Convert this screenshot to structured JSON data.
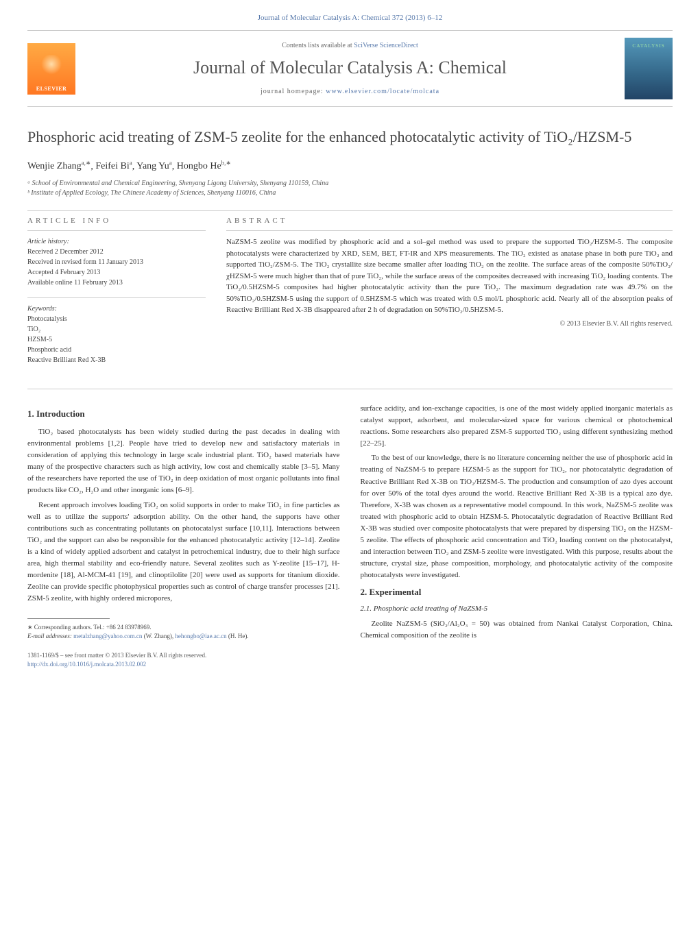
{
  "top_link": "Journal of Molecular Catalysis A: Chemical 372 (2013) 6–12",
  "masthead": {
    "publisher_name": "ELSEVIER",
    "contents_text": "Contents lists available at ",
    "contents_link": "SciVerse ScienceDirect",
    "journal_name": "Journal of Molecular Catalysis A: Chemical",
    "homepage_label": "journal homepage: ",
    "homepage_url": "www.elsevier.com/locate/molcata",
    "cover_label": "CATALYSIS"
  },
  "title": "Phosphoric acid treating of ZSM-5 zeolite for the enhanced photocatalytic activity of TiO₂/HZSM-5",
  "authors_html": "Wenjie Zhang",
  "authors": [
    {
      "name": "Wenjie Zhang",
      "sup": "a,∗"
    },
    {
      "name": "Feifei Bi",
      "sup": "a"
    },
    {
      "name": "Yang Yu",
      "sup": "a"
    },
    {
      "name": "Hongbo He",
      "sup": "b,∗"
    }
  ],
  "affiliations": [
    "ᵃ School of Environmental and Chemical Engineering, Shenyang Ligong University, Shenyang 110159, China",
    "ᵇ Institute of Applied Ecology, The Chinese Academy of Sciences, Shenyang 110016, China"
  ],
  "article_info": {
    "heading": "ARTICLE INFO",
    "history_label": "Article history:",
    "history": [
      "Received 2 December 2012",
      "Received in revised form 11 January 2013",
      "Accepted 4 February 2013",
      "Available online 11 February 2013"
    ],
    "keywords_label": "Keywords:",
    "keywords": [
      "Photocatalysis",
      "TiO₂",
      "HZSM-5",
      "Phosphoric acid",
      "Reactive Brilliant Red X-3B"
    ]
  },
  "abstract": {
    "heading": "ABSTRACT",
    "text": "NaZSM-5 zeolite was modified by phosphoric acid and a sol–gel method was used to prepare the supported TiO₂/HZSM-5. The composite photocatalysts were characterized by XRD, SEM, BET, FT-IR and XPS measurements. The TiO₂ existed as anatase phase in both pure TiO₂ and supported TiO₂/ZSM-5. The TiO₂ crystallite size became smaller after loading TiO₂ on the zeolite. The surface areas of the composite 50%TiO₂/χHZSM-5 were much higher than that of pure TiO₂, while the surface areas of the composites decreased with increasing TiO₂ loading contents. The TiO₂/0.5HZSM-5 composites had higher photocatalytic activity than the pure TiO₂. The maximum degradation rate was 49.7% on the 50%TiO₂/0.5HZSM-5 using the support of 0.5HZSM-5 which was treated with 0.5 mol/L phosphoric acid. Nearly all of the absorption peaks of Reactive Brilliant Red X-3B disappeared after 2 h of degradation on 50%TiO₂/0.5HZSM-5.",
    "copyright": "© 2013 Elsevier B.V. All rights reserved."
  },
  "sections": {
    "intro_heading": "1. Introduction",
    "intro_p1": "TiO₂ based photocatalysts has been widely studied during the past decades in dealing with environmental problems [1,2]. People have tried to develop new and satisfactory materials in consideration of applying this technology in large scale industrial plant. TiO₂ based materials have many of the prospective characters such as high activity, low cost and chemically stable [3–5]. Many of the researchers have reported the use of TiO₂ in deep oxidation of most organic pollutants into final products like CO₂, H₂O and other inorganic ions [6–9].",
    "intro_p2": "Recent approach involves loading TiO₂ on solid supports in order to make TiO₂ in fine particles as well as to utilize the supports' adsorption ability. On the other hand, the supports have other contributions such as concentrating pollutants on photocatalyst surface [10,11]. Interactions between TiO₂ and the support can also be responsible for the enhanced photocatalytic activity [12–14]. Zeolite is a kind of widely applied adsorbent and catalyst in petrochemical industry, due to their high surface area, high thermal stability and eco-friendly nature. Several zeolites such as Y-zeolite [15–17], H-mordenite [18], Al-MCM-41 [19], and clinoptilolite [20] were used as supports for titanium dioxide. Zeolite can provide specific photophysical properties such as control of charge transfer processes [21]. ZSM-5 zeolite, with highly ordered micropores,",
    "intro_p3": "surface acidity, and ion-exchange capacities, is one of the most widely applied inorganic materials as catalyst support, adsorbent, and molecular-sized space for various chemical or photochemical reactions. Some researchers also prepared ZSM-5 supported TiO₂ using different synthesizing method [22–25].",
    "intro_p4": "To the best of our knowledge, there is no literature concerning neither the use of phosphoric acid in treating of NaZSM-5 to prepare HZSM-5 as the support for TiO₂, nor photocatalytic degradation of Reactive Brilliant Red X-3B on TiO₂/HZSM-5. The production and consumption of azo dyes account for over 50% of the total dyes around the world. Reactive Brilliant Red X-3B is a typical azo dye. Therefore, X-3B was chosen as a representative model compound. In this work, NaZSM-5 zeolite was treated with phosphoric acid to obtain HZSM-5. Photocatalytic degradation of Reactive Brilliant Red X-3B was studied over composite photocatalysts that were prepared by dispersing TiO₂ on the HZSM-5 zeolite. The effects of phosphoric acid concentration and TiO₂ loading content on the photocatalyst, and interaction between TiO₂ and ZSM-5 zeolite were investigated. With this purpose, results about the structure, crystal size, phase composition, morphology, and photocatalytic activity of the composite photocatalysts were investigated.",
    "exp_heading": "2. Experimental",
    "exp_sub1": "2.1. Phosphoric acid treating of NaZSM-5",
    "exp_p1": "Zeolite NaZSM-5 (SiO₂/Al₂O₃ = 50) was obtained from Nankai Catalyst Corporation, China. Chemical composition of the zeolite is"
  },
  "footnotes": {
    "corr_label": "∗ Corresponding authors. Tel.: +86 24 83978969.",
    "email_label": "E-mail addresses:",
    "email1": "metalzhang@yahoo.com.cn",
    "email1_who": " (W. Zhang),",
    "email2": "hehongbo@iae.ac.cn",
    "email2_who": " (H. He)."
  },
  "footer": {
    "line1": "1381-1169/$ – see front matter © 2013 Elsevier B.V. All rights reserved.",
    "doi": "http://dx.doi.org/10.1016/j.molcata.2013.02.002"
  },
  "colors": {
    "link": "#5577aa",
    "text": "#333333",
    "muted": "#666666",
    "rule": "#cccccc",
    "logo_top": "#ffaa44",
    "logo_bottom": "#ff7722",
    "cover_top": "#5599bb",
    "cover_bottom": "#224466"
  },
  "fonts": {
    "body_family": "Georgia, serif",
    "title_pt": 22,
    "journal_pt": 26,
    "body_pt": 11,
    "small_pt": 10,
    "tiny_pt": 9
  }
}
